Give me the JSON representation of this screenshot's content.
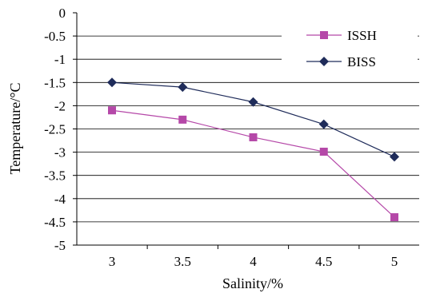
{
  "chart_data": {
    "type": "line",
    "xlabel": "Salinity/%",
    "ylabel": "Temperature/°C",
    "x": [
      3,
      3.5,
      4,
      4.5,
      5
    ],
    "x_tick_labels": [
      "3",
      "3.5",
      "4",
      "4.5",
      "5"
    ],
    "y_tick_labels": [
      "0",
      "-0.5",
      "-1",
      "-1.5",
      "-2",
      "-2.5",
      "-3",
      "-3.5",
      "-4",
      "-4.5",
      "-5"
    ],
    "ylim": [
      -5,
      0
    ],
    "grid": "horizontal",
    "legend_position": "top-right",
    "series": [
      {
        "name": "ISSH",
        "values": [
          -2.1,
          -2.3,
          -2.68,
          -2.99,
          -4.4
        ],
        "color": "#b548a8",
        "marker": "square"
      },
      {
        "name": "BISS",
        "values": [
          -1.5,
          -1.6,
          -1.92,
          -2.4,
          -3.1
        ],
        "color": "#1f2c5a",
        "marker": "diamond"
      }
    ]
  }
}
